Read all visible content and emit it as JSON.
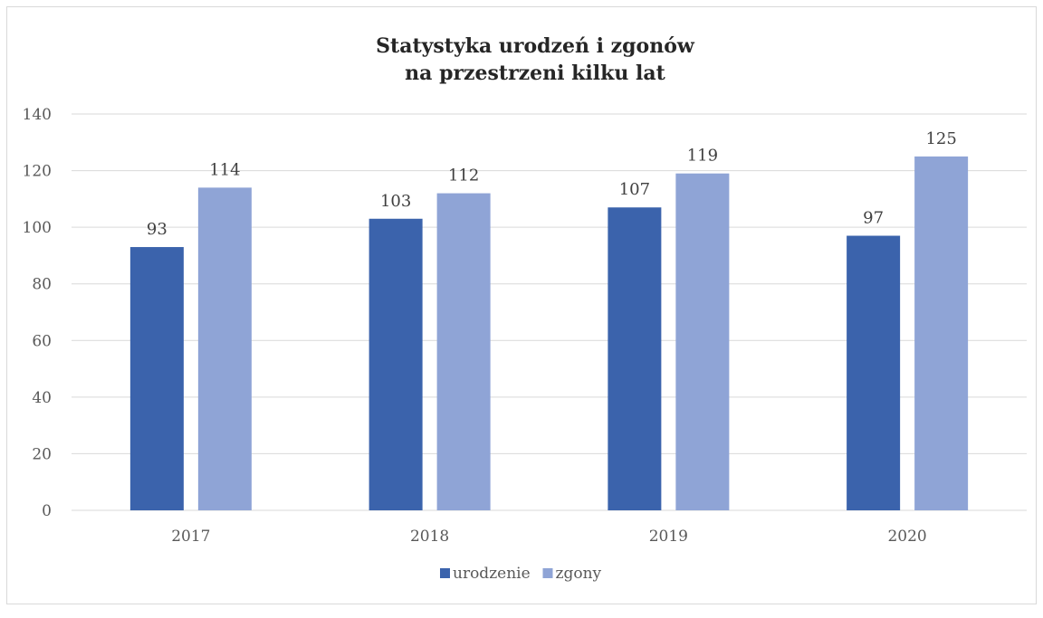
{
  "chart_data": {
    "type": "bar",
    "title_lines": [
      "Statystyka urodzeń i zgonów",
      "na przestrzeni kilku lat"
    ],
    "categories": [
      "2017",
      "2018",
      "2019",
      "2020"
    ],
    "series": [
      {
        "name": "urodzenie",
        "color": "#3b63ac",
        "values": [
          93,
          103,
          107,
          97
        ]
      },
      {
        "name": "zgony",
        "color": "#8fa4d6",
        "values": [
          114,
          112,
          119,
          125
        ]
      }
    ],
    "ylim": [
      0,
      140
    ],
    "yticks": [
      0,
      20,
      40,
      60,
      80,
      100,
      120,
      140
    ],
    "grid": true,
    "legend_position": "bottom",
    "colors": {
      "grid": "#d9d9d9",
      "axis_text": "#595959",
      "label_text": "#404040",
      "title_text": "#262626"
    }
  }
}
